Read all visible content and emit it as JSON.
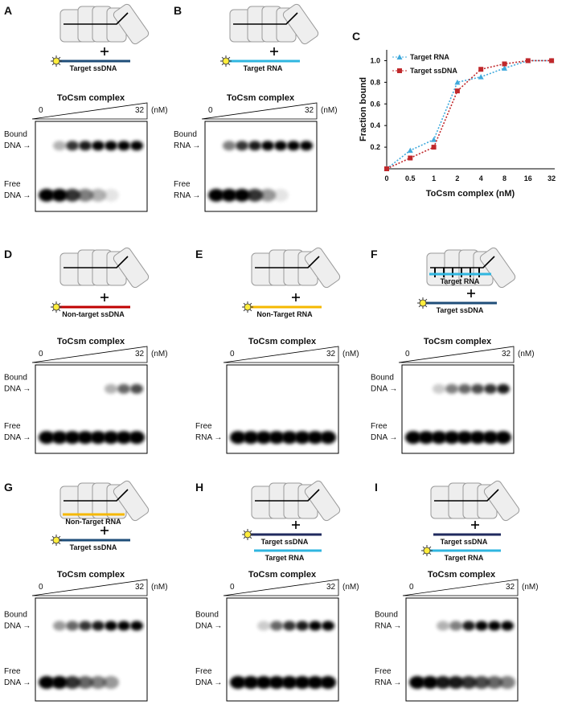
{
  "panels": [
    {
      "label": "A",
      "strands": [
        {
          "name": "Target ssDNA",
          "color": "#1f4e79"
        }
      ],
      "title": "ToCsm complex",
      "conc_start": 0,
      "conc_end": 32,
      "conc_unit": "(nM)",
      "bound_label": [
        "Bound",
        "DNA →"
      ],
      "free_label": [
        "Free",
        "DNA →"
      ]
    },
    {
      "label": "B",
      "strands": [
        {
          "name": "Target RNA",
          "color": "#2fb6e0"
        }
      ],
      "title": "ToCsm complex",
      "conc_start": 0,
      "conc_end": 32,
      "conc_unit": "(nM)",
      "bound_label": [
        "Bound",
        "RNA →"
      ],
      "free_label": [
        "Free",
        "RNA →"
      ]
    },
    {
      "label": "D",
      "strands": [
        {
          "name": "Non-target ssDNA",
          "color": "#c00000"
        }
      ],
      "title": "ToCsm complex",
      "conc_start": 0,
      "conc_end": 32,
      "conc_unit": "(nM)",
      "bound_label": [
        "Bound",
        "DNA →"
      ],
      "free_label": [
        "Free",
        "DNA →"
      ]
    },
    {
      "label": "E",
      "strands": [
        {
          "name": "Non-Target RNA",
          "color": "#f5b800"
        }
      ],
      "title": "ToCsm complex",
      "conc_start": 0,
      "conc_end": 32,
      "conc_unit": "(nM)",
      "free_label": [
        "Free",
        "RNA →"
      ]
    },
    {
      "label": "F",
      "strands": [
        {
          "name": "Target RNA",
          "color": "#2fb6e0"
        },
        {
          "name": "Target ssDNA",
          "color": "#1f4e79"
        }
      ],
      "title": "ToCsm complex",
      "conc_start": 0,
      "conc_end": 32,
      "conc_unit": "(nM)",
      "bound_label": [
        "Bound",
        "DNA →"
      ],
      "free_label": [
        "Free",
        "DNA →"
      ]
    },
    {
      "label": "G",
      "strands": [
        {
          "name": "Non-Target RNA",
          "color": "#f5b800"
        },
        {
          "name": "Target ssDNA",
          "color": "#1f4e79"
        }
      ],
      "title": "ToCsm complex",
      "conc_start": 0,
      "conc_end": 32,
      "conc_unit": "(nM)",
      "bound_label": [
        "Bound",
        "DNA →"
      ],
      "free_label": [
        "Free",
        "DNA →"
      ]
    },
    {
      "label": "H",
      "strands": [
        {
          "name": "Target ssDNA",
          "color": "#1f2a5e"
        },
        {
          "name": "Target RNA",
          "color": "#2fb6e0"
        }
      ],
      "title": "ToCsm complex",
      "conc_start": 0,
      "conc_end": 32,
      "conc_unit": "(nM)",
      "bound_label": [
        "Bound",
        "DNA →"
      ],
      "free_label": [
        "Free",
        "DNA →"
      ]
    },
    {
      "label": "I",
      "strands": [
        {
          "name": "Target ssDNA",
          "color": "#1f2a5e"
        },
        {
          "name": "Target RNA",
          "color": "#2fb6e0"
        }
      ],
      "title": "ToCsm complex",
      "conc_start": 0,
      "conc_end": 32,
      "conc_unit": "(nM)",
      "bound_label": [
        "Bound",
        "RNA →"
      ],
      "free_label": [
        "Free",
        "RNA →"
      ]
    }
  ],
  "chart_data": {
    "label": "C",
    "type": "line",
    "x_label": "ToCsm complex (nM)",
    "y_label": "Fraction bound",
    "categories": [
      0,
      0.5,
      1,
      2,
      4,
      8,
      16,
      32
    ],
    "series": [
      {
        "name": "Target RNA",
        "color": "#3fa9dc",
        "values": [
          0,
          0.17,
          0.27,
          0.8,
          0.85,
          0.93,
          1.0,
          1.0
        ]
      },
      {
        "name": "Target ssDNA",
        "color": "#c0282b",
        "values": [
          0,
          0.1,
          0.2,
          0.72,
          0.92,
          0.97,
          1.0,
          1.0
        ]
      }
    ],
    "ylim": [
      0,
      1.1
    ],
    "yticks": [
      0.2,
      0.4,
      0.6,
      0.8,
      {
        "value": 1,
        "label": "1.0"
      }
    ],
    "legend": "upper left"
  }
}
